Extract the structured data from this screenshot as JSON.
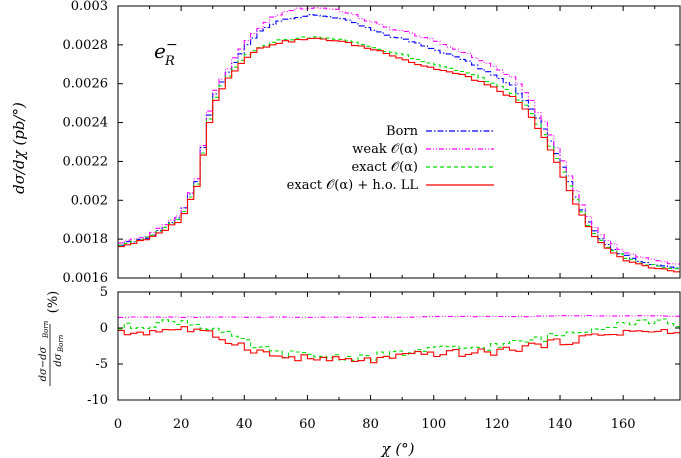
{
  "chart_data": [
    {
      "type": "line",
      "panel": "main",
      "ylabel": "dσ/dχ (pb/°)",
      "annotation": "e_R^-",
      "xlim": [
        0,
        178
      ],
      "ylim": [
        0.0016,
        0.003
      ],
      "x_ticks": [
        0,
        20,
        40,
        60,
        80,
        100,
        120,
        140,
        160
      ],
      "y_ticks": [
        0.0016,
        0.0018,
        0.002,
        0.0022,
        0.0024,
        0.0026,
        0.0028,
        0.003
      ],
      "y_tick_labels": [
        "0.0016",
        "0.0018",
        "0.002",
        "0.0022",
        "0.0024",
        "0.0026",
        "0.0028",
        "0.003"
      ],
      "legend_position": "right-middle",
      "x": [
        0,
        10,
        20,
        25,
        28,
        30,
        35,
        40,
        45,
        50,
        55,
        60,
        65,
        70,
        75,
        80,
        85,
        90,
        95,
        100,
        105,
        110,
        115,
        120,
        125,
        130,
        135,
        140,
        145,
        150,
        155,
        160,
        165,
        170,
        178
      ],
      "series": [
        {
          "name": "Born",
          "color": "#0000ff",
          "dash": "dashdot",
          "values": [
            0.00177,
            0.00181,
            0.00192,
            0.0021,
            0.00235,
            0.00252,
            0.00266,
            0.00278,
            0.00287,
            0.00292,
            0.00294,
            0.00295,
            0.00295,
            0.00294,
            0.00291,
            0.00288,
            0.00285,
            0.00283,
            0.00281,
            0.00278,
            0.00275,
            0.00272,
            0.00268,
            0.00264,
            0.00259,
            0.0025,
            0.00237,
            0.00221,
            0.00202,
            0.00186,
            0.00177,
            0.00172,
            0.00169,
            0.00167,
            0.00165
          ]
        },
        {
          "name": "weak O(α)",
          "color": "#ff00ff",
          "dash": "dashdotdot",
          "values": [
            0.00178,
            0.00182,
            0.00193,
            0.00211,
            0.00237,
            0.00254,
            0.00268,
            0.0028,
            0.00289,
            0.00295,
            0.00298,
            0.00299,
            0.00299,
            0.00298,
            0.00295,
            0.00292,
            0.00289,
            0.00287,
            0.00285,
            0.00282,
            0.00279,
            0.00276,
            0.00272,
            0.00268,
            0.00263,
            0.00254,
            0.0024,
            0.00224,
            0.00205,
            0.00188,
            0.00179,
            0.00174,
            0.00171,
            0.00169,
            0.00167
          ]
        },
        {
          "name": "exact O(α)",
          "color": "#00dd00",
          "dash": "dashed",
          "values": [
            0.00177,
            0.00181,
            0.00191,
            0.00208,
            0.00233,
            0.0025,
            0.00264,
            0.00274,
            0.00279,
            0.00282,
            0.00283,
            0.00284,
            0.00284,
            0.00283,
            0.00281,
            0.00279,
            0.00277,
            0.00275,
            0.00272,
            0.0027,
            0.00268,
            0.00266,
            0.00263,
            0.00259,
            0.00255,
            0.00247,
            0.00234,
            0.00218,
            0.002,
            0.00184,
            0.00176,
            0.00171,
            0.00168,
            0.00166,
            0.00164
          ]
        },
        {
          "name": "exact O(α) + h.o. LL",
          "color": "#ff0000",
          "dash": "solid",
          "values": [
            0.00176,
            0.0018,
            0.0019,
            0.00207,
            0.00232,
            0.00249,
            0.00263,
            0.00273,
            0.00278,
            0.00281,
            0.00282,
            0.00283,
            0.00283,
            0.00282,
            0.0028,
            0.00278,
            0.00276,
            0.00273,
            0.0027,
            0.00268,
            0.00266,
            0.00264,
            0.00261,
            0.00257,
            0.00253,
            0.00245,
            0.00232,
            0.00216,
            0.00198,
            0.00183,
            0.00175,
            0.0017,
            0.00167,
            0.00165,
            0.00163
          ]
        }
      ]
    },
    {
      "type": "line",
      "panel": "ratio",
      "ylabel": "(dσ−dσ_Born)/dσ_Born (%)",
      "xlabel": "χ (°)",
      "xlim": [
        0,
        178
      ],
      "ylim": [
        -10,
        5
      ],
      "x_ticks": [
        0,
        20,
        40,
        60,
        80,
        100,
        120,
        140,
        160
      ],
      "y_ticks": [
        -10,
        -5,
        0,
        5
      ],
      "x": [
        0,
        10,
        20,
        30,
        40,
        50,
        60,
        70,
        80,
        90,
        100,
        110,
        120,
        130,
        140,
        150,
        160,
        170,
        178
      ],
      "series": [
        {
          "name": "weak O(α)",
          "color": "#ff00ff",
          "dash": "dashdotdot",
          "values": [
            1.5,
            1.5,
            1.5,
            1.5,
            1.5,
            1.5,
            1.5,
            1.5,
            1.5,
            1.5,
            1.6,
            1.6,
            1.6,
            1.6,
            1.7,
            1.7,
            1.7,
            1.7,
            1.6
          ]
        },
        {
          "name": "exact O(α)",
          "color": "#00dd00",
          "dash": "dashed",
          "values": [
            0.0,
            0.5,
            1.0,
            0.0,
            -2.0,
            -3.5,
            -3.8,
            -4.0,
            -4.0,
            -3.5,
            -3.0,
            -2.8,
            -2.5,
            -1.8,
            -1.0,
            0.0,
            0.8,
            1.0,
            0.5
          ]
        },
        {
          "name": "exact O(α) + h.o. LL",
          "color": "#ff0000",
          "dash": "solid",
          "values": [
            -0.8,
            -0.5,
            0.0,
            -1.0,
            -2.5,
            -4.0,
            -4.2,
            -4.5,
            -4.5,
            -4.0,
            -3.5,
            -3.5,
            -3.3,
            -2.5,
            -2.0,
            -1.2,
            -0.5,
            -0.5,
            -0.8
          ]
        }
      ]
    }
  ]
}
